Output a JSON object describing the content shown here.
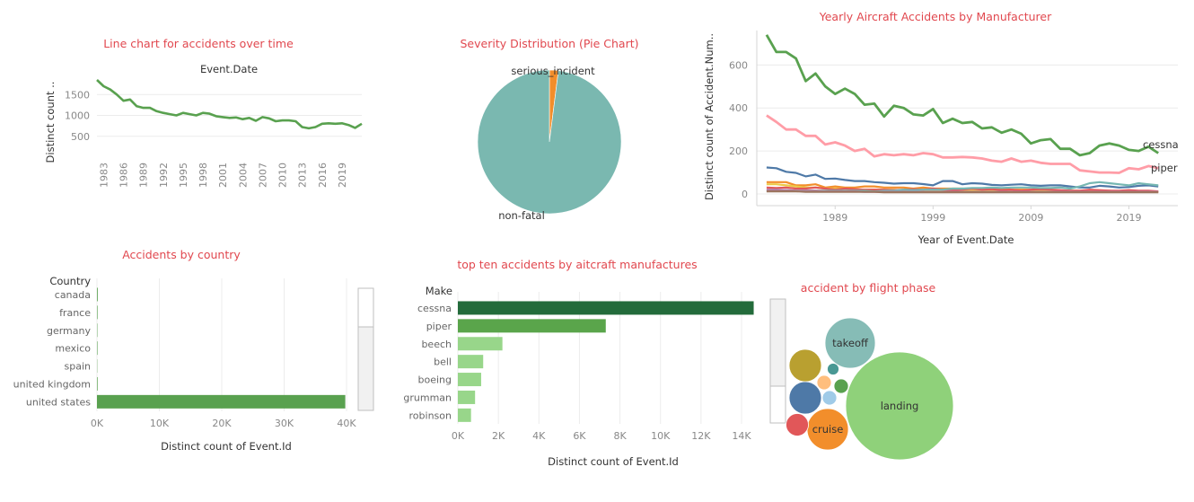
{
  "chart_data": [
    {
      "id": "line-over-time",
      "type": "line",
      "title": "Line chart for accidents over time",
      "header": "Event.Date",
      "ylabel": "Distinct count ..",
      "x": [
        1982,
        1983,
        1984,
        1985,
        1986,
        1987,
        1988,
        1989,
        1990,
        1991,
        1992,
        1993,
        1994,
        1995,
        1996,
        1997,
        1998,
        1999,
        2000,
        2001,
        2002,
        2003,
        2004,
        2005,
        2006,
        2007,
        2008,
        2009,
        2010,
        2011,
        2012,
        2013,
        2014,
        2015,
        2016,
        2017,
        2018,
        2019,
        2020,
        2021,
        2022
      ],
      "values": [
        1850,
        1700,
        1620,
        1500,
        1350,
        1380,
        1220,
        1180,
        1180,
        1100,
        1060,
        1030,
        1000,
        1060,
        1030,
        1000,
        1060,
        1040,
        980,
        960,
        940,
        950,
        910,
        940,
        870,
        960,
        930,
        860,
        880,
        880,
        860,
        720,
        690,
        720,
        800,
        810,
        800,
        810,
        770,
        700,
        800
      ],
      "x_ticks": [
        "1983",
        "1986",
        "1989",
        "1992",
        "1995",
        "1998",
        "2001",
        "2004",
        "2007",
        "2010",
        "2013",
        "2016",
        "2019"
      ],
      "y_ticks": [
        "500",
        "1000",
        "1500"
      ],
      "ylim": [
        0,
        2000
      ],
      "color": "#59a14f"
    },
    {
      "id": "severity-pie",
      "type": "pie",
      "title": "Severity Distribution (Pie Chart)",
      "slices": [
        {
          "label": "non-fatal",
          "value": 98,
          "color": "#7ab8b0"
        },
        {
          "label": "serious_incident",
          "value": 2,
          "color": "#f28e2b"
        }
      ]
    },
    {
      "id": "yearly-by-manufacturer",
      "type": "line",
      "title": "Yearly Aircraft Accidents by Manufacturer",
      "xlabel": "Year of Event.Date",
      "ylabel": "Distinct count of Accident.Num..",
      "x_ticks": [
        "1989",
        "1999",
        "2009",
        "2019"
      ],
      "y_ticks": [
        "0",
        "200",
        "400",
        "600"
      ],
      "xlim": [
        1981,
        2024
      ],
      "ylim": [
        0,
        760
      ],
      "x_start": 1982,
      "series": [
        {
          "name": "cessna",
          "color": "#59a14f",
          "values": [
            740,
            660,
            660,
            630,
            525,
            560,
            500,
            465,
            490,
            465,
            415,
            420,
            360,
            410,
            400,
            370,
            365,
            395,
            330,
            350,
            330,
            335,
            305,
            310,
            285,
            300,
            280,
            235,
            250,
            255,
            210,
            210,
            180,
            190,
            225,
            235,
            225,
            205,
            200,
            220,
            190
          ]
        },
        {
          "name": "piper",
          "color": "#ff9da7",
          "values": [
            365,
            335,
            300,
            300,
            270,
            270,
            230,
            240,
            225,
            200,
            210,
            175,
            185,
            180,
            185,
            180,
            190,
            185,
            170,
            170,
            172,
            170,
            165,
            155,
            150,
            165,
            150,
            155,
            145,
            140,
            140,
            140,
            110,
            105,
            100,
            100,
            98,
            120,
            115,
            130,
            120
          ]
        },
        {
          "color": "#4e79a7",
          "values": [
            123,
            120,
            103,
            98,
            82,
            90,
            70,
            72,
            65,
            60,
            60,
            55,
            52,
            48,
            50,
            50,
            46,
            40,
            60,
            60,
            45,
            50,
            48,
            42,
            40,
            43,
            45,
            40,
            38,
            40,
            40,
            35,
            30,
            30,
            38,
            35,
            30,
            32,
            38,
            40,
            35
          ]
        },
        {
          "color": "#f28e2b",
          "values": [
            55,
            55,
            55,
            40,
            40,
            45,
            30,
            35,
            30,
            30,
            35,
            35,
            30,
            30,
            30,
            25,
            30,
            25,
            25,
            25,
            25,
            20,
            20,
            20,
            25,
            20,
            20,
            20,
            20,
            20,
            15,
            15,
            15,
            15,
            15,
            15,
            10,
            10,
            10,
            10,
            10
          ]
        },
        {
          "color": "#edc948",
          "values": [
            45,
            45,
            40,
            35,
            30,
            30,
            25,
            25,
            25,
            20,
            20,
            20,
            20,
            20,
            15,
            15,
            15,
            15,
            15,
            15,
            15,
            15,
            15,
            15,
            12,
            12,
            12,
            12,
            12,
            12,
            10,
            10,
            10,
            10,
            10,
            10,
            10,
            10,
            10,
            10,
            10
          ]
        },
        {
          "color": "#e15759",
          "values": [
            30,
            28,
            30,
            25,
            25,
            30,
            25,
            20,
            25,
            22,
            20,
            20,
            20,
            18,
            20,
            22,
            20,
            25,
            20,
            18,
            20,
            25,
            20,
            22,
            18,
            20,
            15,
            20,
            22,
            20,
            18,
            15,
            15,
            20,
            18,
            15,
            15,
            18,
            15,
            15,
            12
          ]
        },
        {
          "color": "#76b7b2",
          "values": [
            15,
            15,
            18,
            15,
            15,
            15,
            15,
            15,
            15,
            15,
            15,
            12,
            15,
            15,
            20,
            18,
            20,
            20,
            20,
            25,
            25,
            28,
            28,
            30,
            28,
            30,
            30,
            30,
            28,
            28,
            30,
            25,
            35,
            50,
            55,
            50,
            45,
            40,
            50,
            45,
            40
          ]
        },
        {
          "color": "#b07aa1",
          "values": [
            20,
            20,
            18,
            15,
            15,
            15,
            12,
            12,
            12,
            12,
            10,
            10,
            10,
            10,
            10,
            10,
            10,
            10,
            10,
            10,
            10,
            10,
            10,
            10,
            10,
            10,
            10,
            10,
            10,
            10,
            10,
            10,
            10,
            10,
            10,
            10,
            10,
            10,
            10,
            10,
            10
          ]
        },
        {
          "color": "#9c755f",
          "values": [
            12,
            12,
            12,
            12,
            10,
            10,
            10,
            10,
            10,
            10,
            10,
            10,
            8,
            8,
            8,
            8,
            8,
            8,
            8,
            8,
            8,
            8,
            8,
            8,
            8,
            8,
            8,
            8,
            8,
            8,
            8,
            8,
            8,
            8,
            8,
            8,
            8,
            8,
            8,
            8,
            8
          ]
        }
      ]
    },
    {
      "id": "by-country",
      "type": "bar",
      "orientation": "horizontal",
      "title": "Accidents by country",
      "category_header": "Country",
      "xlabel": "Distinct count of Event.Id",
      "categories": [
        "canada",
        "france",
        "germany",
        "mexico",
        "spain",
        "united kingdom",
        "united states"
      ],
      "values": [
        120,
        90,
        60,
        80,
        40,
        100,
        39800
      ],
      "x_ticks": [
        "0K",
        "10K",
        "20K",
        "30K",
        "40K"
      ],
      "xlim": [
        0,
        40000
      ],
      "color": "#59a14f"
    },
    {
      "id": "top-ten-manufacturers",
      "type": "bar",
      "orientation": "horizontal",
      "title": "top ten accidents by aitcraft manufactures",
      "category_header": "Make",
      "xlabel": "Distinct count of Event.Id",
      "categories": [
        "cessna",
        "piper",
        "beech",
        "bell",
        "boeing",
        "grumman",
        "robinson"
      ],
      "values": [
        14600,
        7300,
        2200,
        1250,
        1150,
        850,
        650
      ],
      "colors": [
        "#236b3b",
        "#5aa54b",
        "#98d68a",
        "#98d68a",
        "#98d68a",
        "#98d68a",
        "#98d68a"
      ],
      "x_ticks": [
        "0K",
        "2K",
        "4K",
        "6K",
        "8K",
        "10K",
        "12K",
        "14K"
      ],
      "xlim": [
        0,
        14000
      ]
    },
    {
      "id": "flight-phase",
      "type": "bubble",
      "title": "accident by flight phase",
      "bubbles": [
        {
          "label": "landing",
          "value": 100,
          "color": "#8fd17a"
        },
        {
          "label": "takeoff",
          "value": 21,
          "color": "#86bcb6"
        },
        {
          "label": "cruise",
          "value": 14,
          "color": "#f28e2b"
        },
        {
          "label": "",
          "value": 9,
          "color": "#4e79a7"
        },
        {
          "label": "",
          "value": 9,
          "color": "#b9a030"
        },
        {
          "label": "",
          "value": 4.5,
          "color": "#e15759"
        },
        {
          "label": "",
          "value": 2,
          "color": "#59a14f"
        },
        {
          "label": "",
          "value": 1.8,
          "color": "#a0cbe8"
        },
        {
          "label": "",
          "value": 1.6,
          "color": "#ffbe7d"
        },
        {
          "label": "",
          "value": 1.2,
          "color": "#499894"
        }
      ]
    }
  ]
}
